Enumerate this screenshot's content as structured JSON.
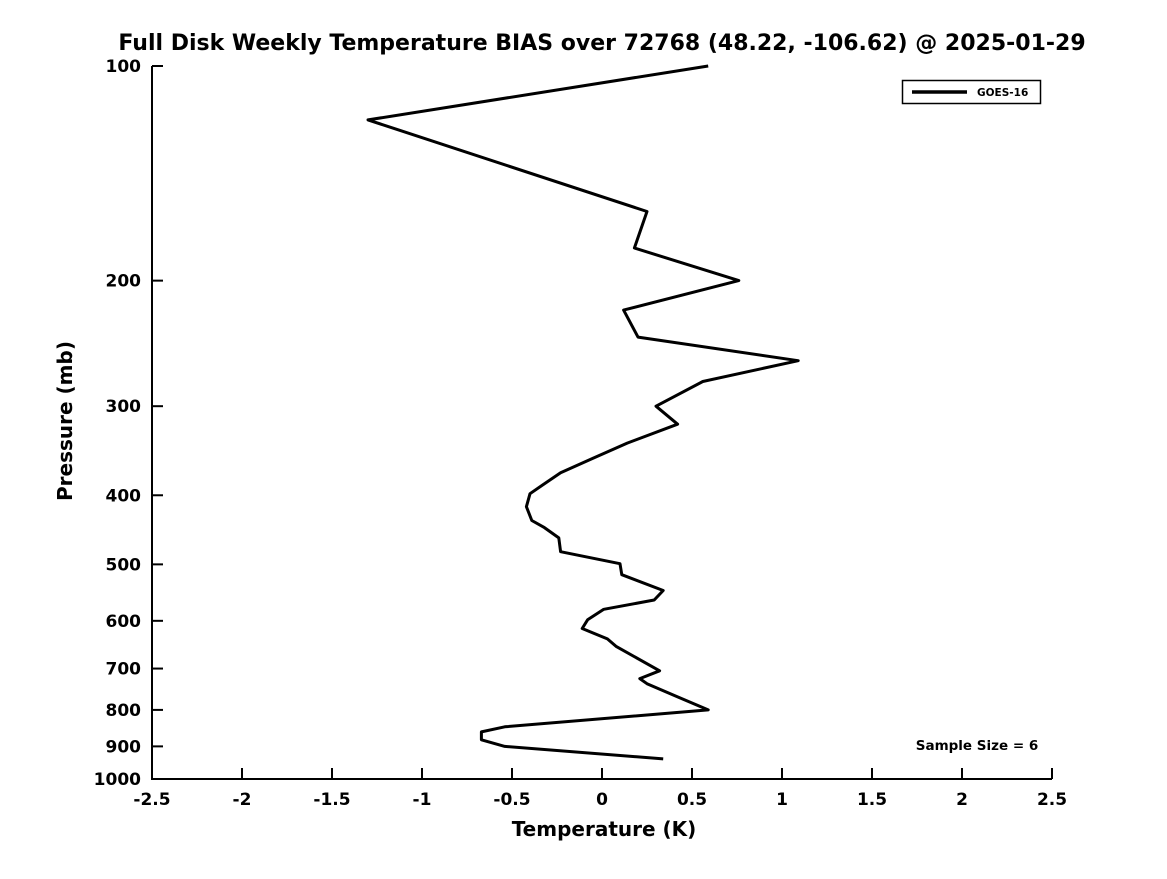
{
  "title": "Full Disk Weekly Temperature BIAS over 72768 (48.22, -106.62) @ 2025-01-29",
  "chart_data": {
    "type": "line",
    "title": "Full Disk Weekly Temperature BIAS over 72768 (48.22, -106.62) @ 2025-01-29",
    "xlabel": "Temperature (K)",
    "ylabel": "Pressure (mb)",
    "xlim": [
      -2.5,
      2.5
    ],
    "ylim": [
      100,
      1000
    ],
    "yscale": "log",
    "y_axis_inverted": true,
    "grid": false,
    "x_tick_values": [
      -2.5,
      -2,
      -1.5,
      -1,
      -0.5,
      0,
      0.5,
      1,
      1.5,
      2,
      2.5
    ],
    "x_tick_labels": [
      "-2.5",
      "-2",
      "-1.5",
      "-1",
      "-0.5",
      "0",
      "0.5",
      "1",
      "1.5",
      "2",
      "2.5"
    ],
    "y_tick_values": [
      100,
      200,
      300,
      400,
      500,
      600,
      700,
      800,
      900,
      1000
    ],
    "y_tick_labels": [
      "100",
      "200",
      "300",
      "400",
      "500",
      "600",
      "700",
      "800",
      "900",
      "1000"
    ],
    "line_color": "#000000",
    "legend": {
      "position": "top-right",
      "entries": [
        {
          "label": "GOES-16",
          "color": "#000000"
        }
      ]
    },
    "annotation": {
      "text": "Sample Size = 6"
    },
    "series": [
      {
        "name": "GOES-16",
        "points_format": "[temperature_bias_K, pressure_mb]",
        "points": [
          [
            0.59,
            100
          ],
          [
            -1.3,
            119
          ],
          [
            0.25,
            160
          ],
          [
            0.18,
            180
          ],
          [
            0.76,
            200
          ],
          [
            0.12,
            220
          ],
          [
            0.2,
            240
          ],
          [
            1.09,
            259
          ],
          [
            0.56,
            277
          ],
          [
            0.3,
            300
          ],
          [
            0.42,
            318
          ],
          [
            0.14,
            338
          ],
          [
            -0.05,
            355
          ],
          [
            -0.23,
            372
          ],
          [
            -0.33,
            387
          ],
          [
            -0.4,
            398
          ],
          [
            -0.42,
            415
          ],
          [
            -0.39,
            434
          ],
          [
            -0.32,
            444
          ],
          [
            -0.24,
            459
          ],
          [
            -0.23,
            480
          ],
          [
            0.1,
            499
          ],
          [
            0.11,
            517
          ],
          [
            0.34,
            544
          ],
          [
            0.29,
            561
          ],
          [
            0.01,
            578
          ],
          [
            -0.08,
            598
          ],
          [
            -0.11,
            615
          ],
          [
            0.03,
            636
          ],
          [
            0.08,
            652
          ],
          [
            0.32,
            705
          ],
          [
            0.21,
            723
          ],
          [
            0.25,
            735
          ],
          [
            0.42,
            767
          ],
          [
            0.59,
            800
          ],
          [
            -0.54,
            845
          ],
          [
            -0.67,
            859
          ],
          [
            -0.67,
            881
          ],
          [
            -0.54,
            900
          ],
          [
            0.34,
            937
          ]
        ]
      }
    ]
  }
}
